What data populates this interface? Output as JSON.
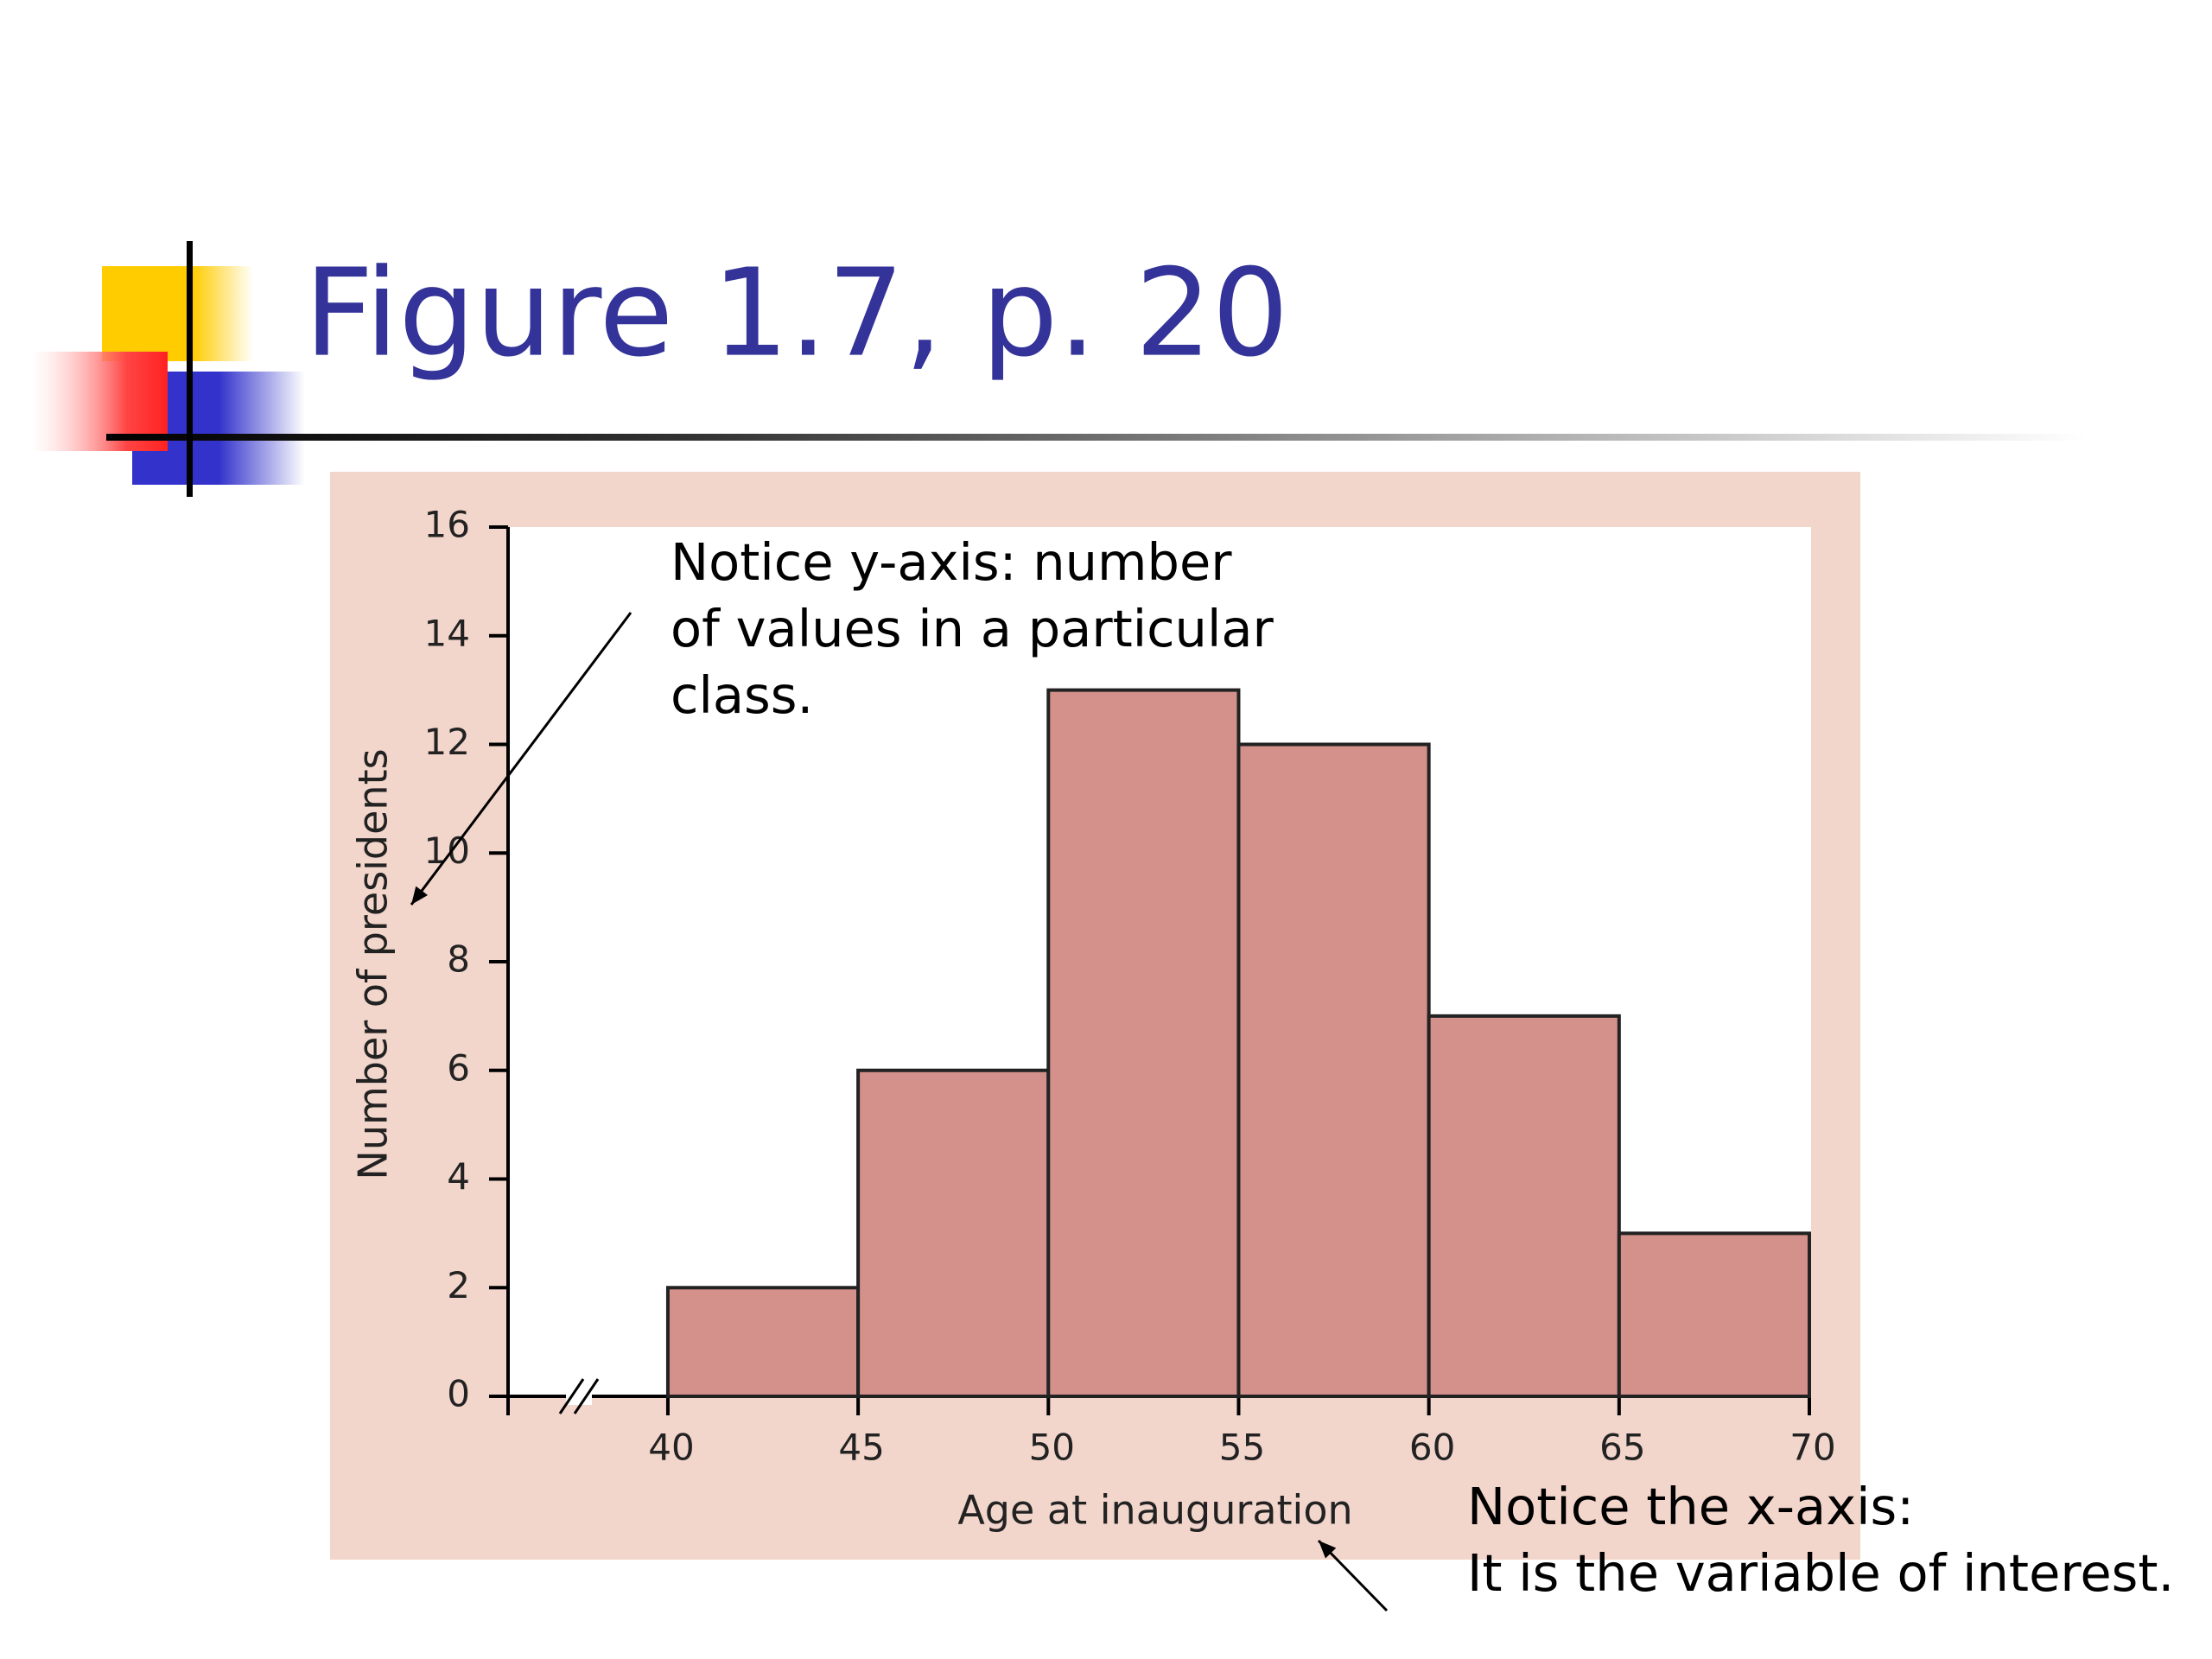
{
  "chart_data": {
    "type": "histogram",
    "title": "Figure 1.7, p. 20",
    "x_label": "Age at inauguration",
    "y_label": "Number of presidents",
    "bins": [
      40,
      45,
      50,
      55,
      60,
      65,
      70
    ],
    "values": [
      2,
      6,
      13,
      12,
      7,
      3
    ],
    "color": "#d4908a",
    "xlim": [
      35.8,
      70
    ],
    "xticks": [
      40,
      45,
      50,
      55,
      60,
      65,
      70
    ],
    "ylim": [
      0,
      16
    ],
    "yticks": [
      0,
      2,
      4,
      6,
      8,
      10,
      12,
      14,
      16
    ],
    "annotations": [
      [
        "Notice y-axis: number",
        "of values in a particular",
        "class."
      ],
      [
        "Notice the x-axis:",
        "It is the variable of interest."
      ]
    ]
  }
}
